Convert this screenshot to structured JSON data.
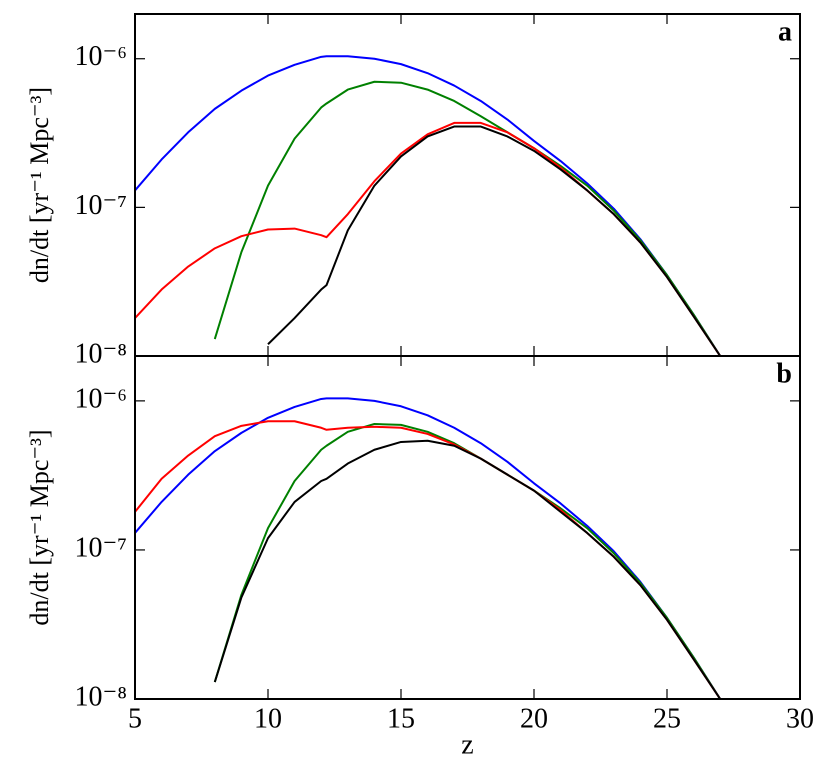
{
  "chart_data": [
    {
      "type": "line",
      "annotation": "a",
      "ylabel": "dn/dt [yr⁻¹ Mpc⁻³]",
      "log_y": true,
      "xlim": [
        5,
        30
      ],
      "xticks": [
        5,
        10,
        15,
        20,
        25,
        30
      ],
      "xtick_labels": false,
      "ylim": [
        1e-08,
        2e-06
      ],
      "yticks": [
        {
          "value": 1e-08,
          "label": "10⁻⁸"
        },
        {
          "value": 1e-07,
          "label": "10⁻⁷"
        },
        {
          "value": 1e-06,
          "label": "10⁻⁶"
        }
      ],
      "x": [
        5,
        6,
        7,
        8,
        9,
        10,
        11,
        12,
        12.2,
        13,
        14,
        15,
        16,
        17,
        18,
        19,
        20,
        21,
        22,
        23,
        24,
        25,
        26,
        27
      ],
      "series": [
        {
          "color": "#0000ff",
          "values": [
            1.3e-07,
            2.1e-07,
            3.2e-07,
            4.6e-07,
            6.1e-07,
            7.7e-07,
            9.1e-07,
            1.03e-06,
            1.04e-06,
            1.04e-06,
            1e-06,
            9.2e-07,
            8e-07,
            6.6e-07,
            5.2e-07,
            3.9e-07,
            2.8e-07,
            2.05e-07,
            1.45e-07,
            9.8e-08,
            6.1e-08,
            3.5e-08,
            1.9e-08,
            1e-08
          ]
        },
        {
          "color": "#008000",
          "values": [
            null,
            null,
            null,
            1.3e-08,
            5e-08,
            1.4e-07,
            2.9e-07,
            4.7e-07,
            5e-07,
            6.2e-07,
            7e-07,
            6.9e-07,
            6.2e-07,
            5.2e-07,
            4.1e-07,
            3.2e-07,
            2.5e-07,
            1.9e-07,
            1.4e-07,
            9.5e-08,
            6e-08,
            3.5e-08,
            1.9e-08,
            1e-08
          ]
        },
        {
          "color": "#ff0000",
          "values": [
            1.8e-08,
            2.8e-08,
            4e-08,
            5.3e-08,
            6.4e-08,
            7.1e-08,
            7.2e-08,
            6.5e-08,
            6.3e-08,
            9e-08,
            1.5e-07,
            2.3e-07,
            3.1e-07,
            3.7e-07,
            3.7e-07,
            3.2e-07,
            2.5e-07,
            1.85e-07,
            1.3e-07,
            9e-08,
            5.8e-08,
            3.4e-08,
            1.85e-08,
            1e-08
          ]
        },
        {
          "color": "#000000",
          "values": [
            null,
            null,
            null,
            null,
            null,
            1.2e-08,
            1.8e-08,
            2.8e-08,
            3e-08,
            7e-08,
            1.4e-07,
            2.2e-07,
            3e-07,
            3.5e-07,
            3.5e-07,
            3e-07,
            2.4e-07,
            1.8e-07,
            1.3e-07,
            9e-08,
            5.8e-08,
            3.4e-08,
            1.85e-08,
            1e-08
          ]
        }
      ]
    },
    {
      "type": "line",
      "annotation": "b",
      "ylabel": "dn/dt [yr⁻¹ Mpc⁻³]",
      "xlabel": "z",
      "log_y": true,
      "xlim": [
        5,
        30
      ],
      "xticks": [
        5,
        10,
        15,
        20,
        25,
        30
      ],
      "xtick_labels": true,
      "ylim": [
        1e-08,
        2e-06
      ],
      "yticks": [
        {
          "value": 1e-08,
          "label": "10⁻⁸"
        },
        {
          "value": 1e-07,
          "label": "10⁻⁷"
        },
        {
          "value": 1e-06,
          "label": "10⁻⁶"
        }
      ],
      "x": [
        5,
        6,
        7,
        8,
        9,
        10,
        11,
        12,
        12.2,
        13,
        14,
        15,
        16,
        17,
        18,
        19,
        20,
        21,
        22,
        23,
        24,
        25,
        26,
        27
      ],
      "series": [
        {
          "color": "#0000ff",
          "values": [
            1.3e-07,
            2.1e-07,
            3.2e-07,
            4.6e-07,
            6.1e-07,
            7.7e-07,
            9.1e-07,
            1.03e-06,
            1.04e-06,
            1.04e-06,
            1e-06,
            9.2e-07,
            8e-07,
            6.6e-07,
            5.2e-07,
            3.9e-07,
            2.8e-07,
            2.05e-07,
            1.45e-07,
            9.8e-08,
            6.1e-08,
            3.5e-08,
            1.9e-08,
            1e-08
          ]
        },
        {
          "color": "#008000",
          "values": [
            null,
            null,
            null,
            1.3e-08,
            5e-08,
            1.4e-07,
            2.9e-07,
            4.7e-07,
            5e-07,
            6.2e-07,
            7e-07,
            6.9e-07,
            6.2e-07,
            5.2e-07,
            4.1e-07,
            3.2e-07,
            2.5e-07,
            1.9e-07,
            1.4e-07,
            9.5e-08,
            6e-08,
            3.5e-08,
            1.9e-08,
            1e-08
          ]
        },
        {
          "color": "#ff0000",
          "values": [
            1.8e-07,
            3e-07,
            4.3e-07,
            5.8e-07,
            6.8e-07,
            7.3e-07,
            7.3e-07,
            6.6e-07,
            6.4e-07,
            6.6e-07,
            6.7e-07,
            6.6e-07,
            6e-07,
            5.1e-07,
            4.1e-07,
            3.2e-07,
            2.5e-07,
            1.85e-07,
            1.3e-07,
            9e-08,
            5.8e-08,
            3.4e-08,
            1.85e-08,
            1e-08
          ]
        },
        {
          "color": "#000000",
          "values": [
            null,
            null,
            null,
            1.3e-08,
            4.8e-08,
            1.2e-07,
            2.1e-07,
            2.9e-07,
            3e-07,
            3.8e-07,
            4.7e-07,
            5.3e-07,
            5.4e-07,
            5e-07,
            4.1e-07,
            3.2e-07,
            2.5e-07,
            1.8e-07,
            1.3e-07,
            9e-08,
            5.8e-08,
            3.4e-08,
            1.85e-08,
            1e-08
          ]
        }
      ]
    }
  ]
}
